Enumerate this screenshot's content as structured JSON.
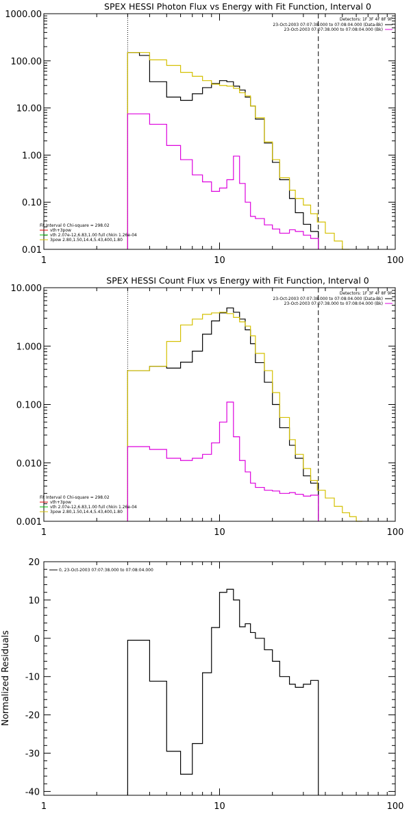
{
  "chart_data": [
    {
      "type": "line",
      "title": "SPEX HESSI Photon Flux vs Energy with Fit Function, Interval 0",
      "xlabel": "",
      "ylabel": "",
      "xscale": "log",
      "yscale": "log",
      "xlim": [
        1,
        100
      ],
      "ylim": [
        0.01,
        1000
      ],
      "xtick_labels": [
        "1",
        "10",
        "100"
      ],
      "ytick_labels": [
        "0.01",
        "0.10",
        "1.00",
        "10.00",
        "100.00",
        "1000.00"
      ],
      "legend_right": {
        "header": "Detectors: 1F 3F 4F 8F 9F",
        "entries": [
          {
            "text": "23-Oct-2003 07:07:38.000 to 07:08:04.000 (Data-Bk)",
            "color": "#000000"
          },
          {
            "text": "23-Oct-2003 07:07:38.000 to 07:08:04.000 (Bk)",
            "color": "#dd00dd"
          }
        ]
      },
      "legend_left": {
        "header": "Fit Interval 0   Chi-square = 298.02",
        "entries": [
          {
            "text": "vth+3pow",
            "color": "#e00000"
          },
          {
            "text": "vth 2.07e-12,6.83,1.00   full chkin 1.26e-04",
            "color": "#00bb00"
          },
          {
            "text": "3pow 2.80,1.50,14.4,5.43,400,1.80",
            "color": "#d4c000"
          }
        ]
      },
      "vlines": [
        {
          "x": 3,
          "style": "dotted"
        },
        {
          "x": 36.5,
          "style": "dashed"
        }
      ],
      "series": [
        {
          "color": "#000000",
          "edges": [
            3,
            3.5,
            4,
            5,
            6,
            7,
            8,
            9,
            10,
            11,
            12,
            13,
            14,
            15,
            16,
            18,
            20,
            22,
            25,
            27,
            30,
            33,
            36.5
          ],
          "values": [
            150,
            130,
            36,
            17,
            14.5,
            20,
            27,
            33,
            38,
            36,
            29,
            24,
            17,
            11,
            5.8,
            1.8,
            0.7,
            0.3,
            0.12,
            0.06,
            0.034,
            0.024
          ]
        },
        {
          "color": "#d4c000",
          "edges": [
            3,
            4,
            5,
            6,
            7,
            8,
            9,
            10,
            11,
            12,
            13,
            14,
            15,
            16,
            18,
            20,
            22,
            25,
            27,
            30,
            33,
            36,
            40,
            45,
            50,
            55
          ],
          "values": [
            150,
            105,
            80,
            57,
            47,
            38,
            32,
            30,
            29,
            26,
            21,
            18,
            11,
            6.2,
            1.9,
            0.8,
            0.33,
            0.18,
            0.12,
            0.087,
            0.057,
            0.038,
            0.022,
            0.015,
            0.01
          ]
        },
        {
          "color": "#dd00dd",
          "edges": [
            3,
            4,
            5,
            6,
            7,
            8,
            9,
            10,
            11,
            12,
            13,
            14,
            15,
            16,
            18,
            20,
            22,
            25,
            27,
            30,
            33,
            36.5
          ],
          "values": [
            7.5,
            4.5,
            1.6,
            0.8,
            0.38,
            0.27,
            0.17,
            0.2,
            0.3,
            0.95,
            0.25,
            0.1,
            0.05,
            0.045,
            0.033,
            0.027,
            0.022,
            0.026,
            0.024,
            0.02,
            0.017
          ]
        }
      ]
    },
    {
      "type": "line",
      "title": "SPEX HESSI Count Flux vs Energy with Fit Function, Interval 0",
      "xlabel": "",
      "ylabel": "",
      "xscale": "log",
      "yscale": "log",
      "xlim": [
        1,
        100
      ],
      "ylim": [
        0.001,
        10
      ],
      "xtick_labels": [
        "1",
        "10",
        "100"
      ],
      "ytick_labels": [
        "0.001",
        "0.010",
        "0.100",
        "1.000",
        "10.000"
      ],
      "legend_right": {
        "header": "Detectors: 1F 3F 4F 8F 9F",
        "entries": [
          {
            "text": "23-Oct-2003 07:07:38.000 to 07:08:04.000 (Data-Bk)",
            "color": "#000000"
          },
          {
            "text": "23-Oct-2003 07:07:38.000 to 07:08:04.000 (Bk)",
            "color": "#dd00dd"
          }
        ]
      },
      "legend_left": {
        "header": "Fit Interval 0   Chi-square = 298.02",
        "entries": [
          {
            "text": "vth+3pow",
            "color": "#e00000"
          },
          {
            "text": "vth 2.07e-12,6.83,1.00   full chkin 1.26e-04",
            "color": "#00bb00"
          },
          {
            "text": "3pow 2.80,1.50,14.4,5.43,400,1.80",
            "color": "#d4c000"
          }
        ]
      },
      "vlines": [
        {
          "x": 3,
          "style": "dotted"
        },
        {
          "x": 36.5,
          "style": "dashed"
        }
      ],
      "series": [
        {
          "color": "#000000",
          "edges": [
            3,
            4,
            5,
            6,
            7,
            8,
            9,
            10,
            11,
            12,
            13,
            14,
            15,
            16,
            18,
            20,
            22,
            25,
            27,
            30,
            33,
            36.5
          ],
          "values": [
            0.38,
            0.45,
            0.42,
            0.53,
            0.82,
            1.6,
            2.7,
            3.7,
            4.5,
            3.8,
            2.9,
            1.9,
            1.1,
            0.52,
            0.24,
            0.1,
            0.04,
            0.02,
            0.012,
            0.006,
            0.0045
          ]
        },
        {
          "color": "#d4c000",
          "edges": [
            3,
            4,
            5,
            6,
            7,
            8,
            9,
            10,
            11,
            12,
            13,
            14,
            15,
            16,
            18,
            20,
            22,
            25,
            27,
            30,
            33,
            36,
            40,
            45,
            50,
            55,
            60,
            65
          ],
          "values": [
            0.38,
            0.45,
            1.2,
            2.3,
            2.9,
            3.5,
            3.7,
            3.8,
            3.6,
            3.1,
            2.6,
            2.2,
            1.5,
            0.75,
            0.38,
            0.16,
            0.06,
            0.025,
            0.014,
            0.008,
            0.005,
            0.0034,
            0.0025,
            0.0018,
            0.0014,
            0.0012,
            0.001
          ]
        },
        {
          "color": "#dd00dd",
          "edges": [
            3,
            4,
            5,
            6,
            7,
            8,
            9,
            10,
            11,
            12,
            13,
            14,
            15,
            16,
            18,
            20,
            22,
            25,
            27,
            30,
            33,
            36.5
          ],
          "values": [
            0.019,
            0.017,
            0.012,
            0.011,
            0.012,
            0.014,
            0.022,
            0.05,
            0.11,
            0.028,
            0.011,
            0.007,
            0.0045,
            0.0038,
            0.0034,
            0.0033,
            0.003,
            0.0031,
            0.0029,
            0.0027,
            0.0028
          ]
        }
      ]
    },
    {
      "type": "line",
      "title": "",
      "xlabel": "",
      "ylabel": "Normalized Residuals",
      "xscale": "log",
      "yscale": "linear",
      "xlim": [
        1,
        100
      ],
      "ylim": [
        -41,
        20
      ],
      "xtick_labels": [
        "1",
        "10",
        "100"
      ],
      "ytick_labels": [
        "-40",
        "-30",
        "-20",
        "-10",
        "0",
        "10",
        "20"
      ],
      "legend_left": {
        "header": "",
        "entries": [
          {
            "text": "0, 23-Oct-2003 07:07:38.000 to 07:08:04.000",
            "color": "#000000"
          }
        ]
      },
      "series": [
        {
          "color": "#000000",
          "edges": [
            3,
            4,
            5,
            6,
            7,
            8,
            9,
            10,
            11,
            12,
            13,
            14,
            15,
            16,
            18,
            20,
            22,
            25,
            27,
            30,
            33,
            36.5
          ],
          "values": [
            -0.5,
            -11.2,
            -29.5,
            -35.5,
            -27.5,
            -9,
            2.8,
            12,
            12.8,
            10,
            3,
            3.8,
            1.5,
            0,
            -3,
            -6,
            -10,
            -12,
            -12.8,
            -12,
            -11
          ]
        }
      ]
    }
  ]
}
